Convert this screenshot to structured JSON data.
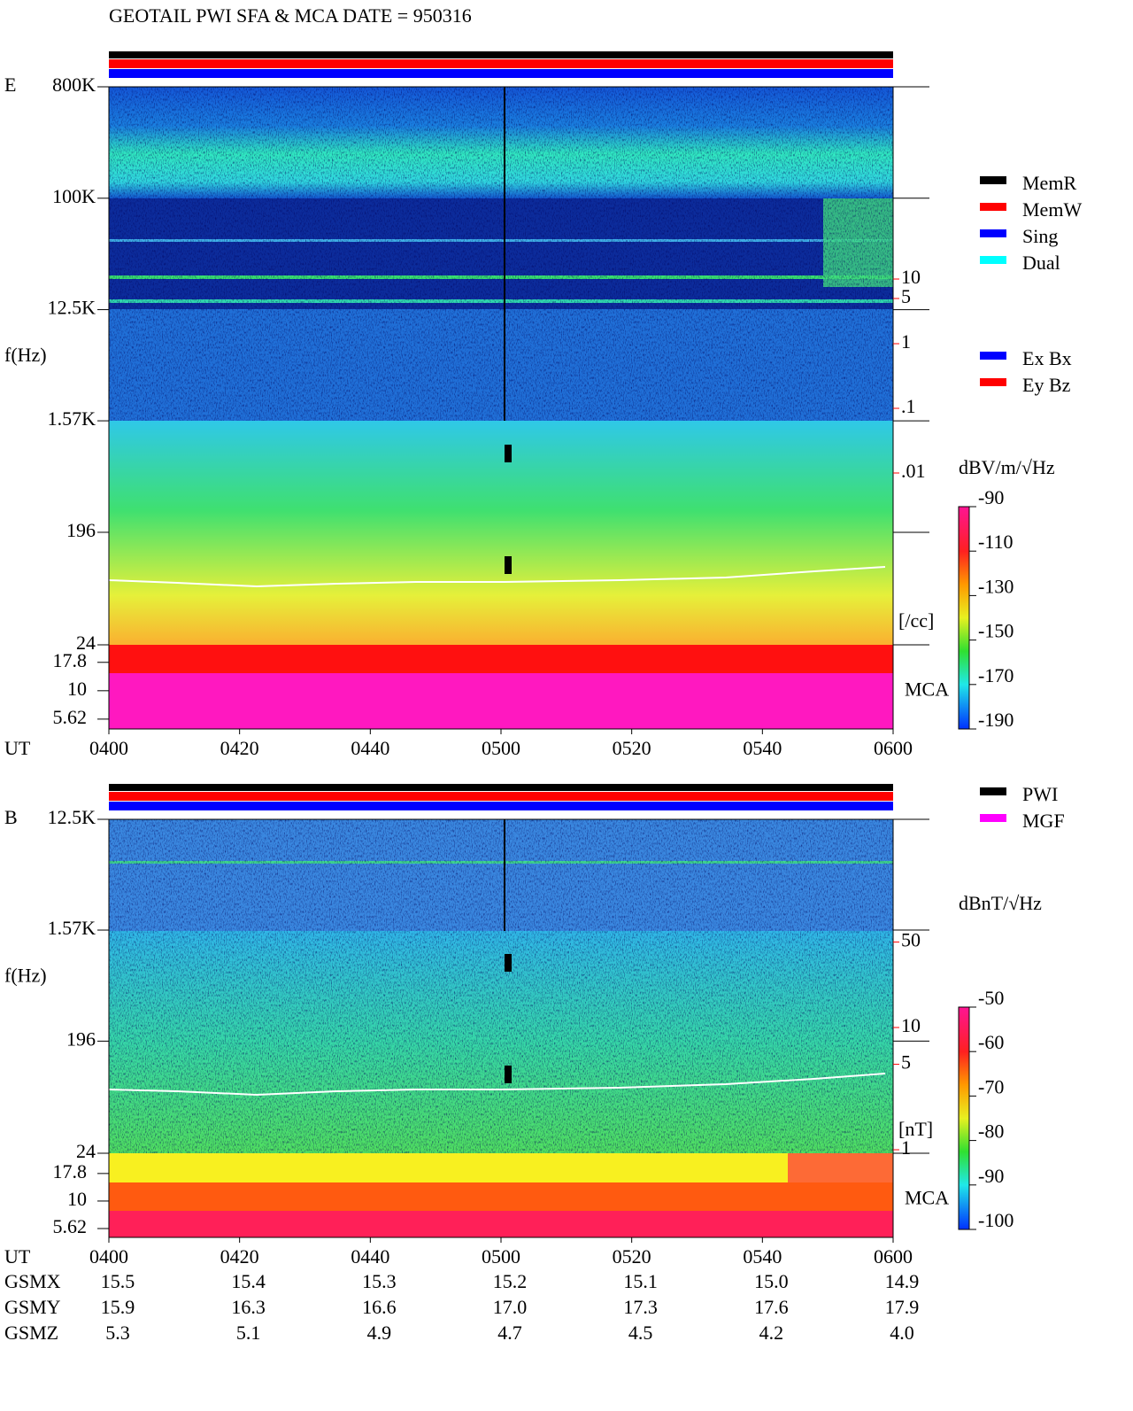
{
  "title": "GEOTAIL   PWI SFA & MCA   DATE = 950316",
  "chart_data": [
    {
      "type": "spectrogram",
      "panel_label": "E",
      "ylabel": "f(Hz)",
      "xlabel": "UT",
      "log_y": true,
      "ylim": [
        24,
        800000
      ],
      "yticks": [
        {
          "value": 800000,
          "label": "800K"
        },
        {
          "value": 100000,
          "label": "100K"
        },
        {
          "value": 12500,
          "label": "12.5K"
        },
        {
          "value": 1570,
          "label": "1.57K"
        },
        196,
        24
      ],
      "mca_label": "MCA",
      "mca_ylim": [
        4.6,
        25.4
      ],
      "mca_ticks": [
        17.8,
        10,
        5.62
      ],
      "x_labels": [
        "0400",
        "0420",
        "0440",
        "0500",
        "0520",
        "0540",
        "0600"
      ],
      "y2lim": [
        2.2e-05,
        9400
      ],
      "y2ticks": [
        10,
        5,
        1,
        {
          "value": 0.1,
          "label": ".1"
        },
        {
          "value": 0.01,
          "label": ".01"
        }
      ],
      "y2label": "[/cc]",
      "y2_color": "#ff0000",
      "colorbar": {
        "label": "dBV/m/√Hz",
        "lim": [
          -190,
          -90
        ],
        "ticks": [
          -90,
          -110,
          -130,
          -150,
          -170,
          -190
        ]
      },
      "legend": [
        {
          "name": "MemR",
          "color": "#000000"
        },
        {
          "name": "MemW",
          "color": "#ff0000"
        },
        {
          "name": "Sing",
          "color": "#0000ff"
        },
        {
          "name": "Dual",
          "color": "#00ffff"
        }
      ],
      "legend2": [
        {
          "name": "Ex Bx",
          "color": "#0000ff"
        },
        {
          "name": "Ey Bz",
          "color": "#ff0000"
        }
      ]
    },
    {
      "type": "spectrogram",
      "panel_label": "B",
      "ylabel": "f(Hz)",
      "xlabel": "UT",
      "log_y": true,
      "ylim": [
        24,
        12500
      ],
      "yticks": [
        {
          "value": 12500,
          "label": "12.5K"
        },
        {
          "value": 1570,
          "label": "1.57K"
        },
        196,
        24
      ],
      "mca_label": "MCA",
      "mca_ylim": [
        4.67,
        27.2
      ],
      "mca_ticks": [
        17.8,
        10,
        5.62
      ],
      "x_labels": [
        "0400",
        "0420",
        "0440",
        "0500",
        "0520",
        "0540",
        "0600"
      ],
      "y2lim": [
        0.936,
        505
      ],
      "y2ticks": [
        50,
        10,
        5,
        1
      ],
      "y2label": "[nT]",
      "y2_color": "#ff0000",
      "colorbar": {
        "label": "dBnT/√Hz",
        "lim": [
          -100,
          -50
        ],
        "ticks": [
          -50,
          -60,
          -70,
          -80,
          -90,
          -100
        ]
      },
      "legend": [
        {
          "name": "PWI",
          "color": "#000000"
        },
        {
          "name": "MGF",
          "color": "#ff00ff"
        }
      ]
    }
  ],
  "orbit": {
    "labels": [
      "GSMX",
      "GSMY",
      "GSMZ"
    ],
    "rows": [
      [
        "15.5",
        "15.4",
        "15.3",
        "15.2",
        "15.1",
        "15.0",
        "14.9"
      ],
      [
        "15.9",
        "16.3",
        "16.6",
        "17.0",
        "17.3",
        "17.6",
        "17.9"
      ],
      [
        "5.3",
        "5.1",
        "4.9",
        "4.7",
        "4.5",
        "4.2",
        "4.0"
      ]
    ]
  }
}
